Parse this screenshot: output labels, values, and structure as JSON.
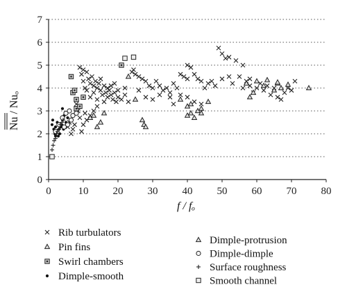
{
  "chart_data": {
    "type": "scatter",
    "title": "",
    "xlabel": "f / fₒ",
    "ylabel": "Nu / Nuₒ",
    "xlim": [
      0,
      80
    ],
    "ylim": [
      0,
      7
    ],
    "x_ticks": [
      "0",
      "10",
      "20",
      "30",
      "40",
      "50",
      "60",
      "70",
      "80"
    ],
    "y_ticks": [
      "0",
      "1",
      "2",
      "3",
      "4",
      "5",
      "6",
      "7"
    ],
    "grid": "horizontal dotted",
    "legend_position": "bottom",
    "series": [
      {
        "name": "Rib turbulators",
        "marker": "cross",
        "points": [
          [
            9,
            4.9
          ],
          [
            9.5,
            4.6
          ],
          [
            10,
            4.8
          ],
          [
            10,
            4.3
          ],
          [
            10.5,
            4.0
          ],
          [
            11,
            4.7
          ],
          [
            11,
            3.9
          ],
          [
            11.5,
            4.4
          ],
          [
            12,
            4.2
          ],
          [
            12,
            3.6
          ],
          [
            12.5,
            4.5
          ],
          [
            13,
            4.1
          ],
          [
            13,
            3.8
          ],
          [
            13.5,
            4.3
          ],
          [
            14,
            4.0
          ],
          [
            14,
            3.5
          ],
          [
            14.5,
            4.2
          ],
          [
            15,
            4.4
          ],
          [
            15,
            3.9
          ],
          [
            15.5,
            3.7
          ],
          [
            16,
            4.1
          ],
          [
            16,
            3.4
          ],
          [
            16.5,
            3.8
          ],
          [
            17,
            4.0
          ],
          [
            17,
            3.6
          ],
          [
            17.5,
            3.9
          ],
          [
            18,
            3.7
          ],
          [
            18.5,
            3.5
          ],
          [
            19,
            3.8
          ],
          [
            19.5,
            3.4
          ],
          [
            20,
            3.6
          ],
          [
            21,
            3.5
          ],
          [
            22,
            3.7
          ],
          [
            23,
            3.4
          ],
          [
            24,
            4.7
          ],
          [
            24.5,
            4.8
          ],
          [
            25,
            4.6
          ],
          [
            26,
            4.5
          ],
          [
            27,
            4.4
          ],
          [
            28,
            4.3
          ],
          [
            29,
            4.1
          ],
          [
            30,
            4.0
          ],
          [
            31,
            4.3
          ],
          [
            32,
            4.1
          ],
          [
            33,
            3.9
          ],
          [
            34,
            4.0
          ],
          [
            35,
            3.8
          ],
          [
            36,
            4.2
          ],
          [
            37,
            4.0
          ],
          [
            38,
            3.7
          ],
          [
            38,
            4.6
          ],
          [
            39,
            4.5
          ],
          [
            40,
            4.4
          ],
          [
            40,
            5.0
          ],
          [
            41,
            4.9
          ],
          [
            42,
            4.6
          ],
          [
            43,
            4.4
          ],
          [
            44,
            4.3
          ],
          [
            45,
            4.0
          ],
          [
            46,
            4.2
          ],
          [
            47,
            4.3
          ],
          [
            48,
            4.1
          ],
          [
            49,
            5.75
          ],
          [
            50,
            5.5
          ],
          [
            50,
            4.4
          ],
          [
            51,
            5.3
          ],
          [
            52,
            4.5
          ],
          [
            52,
            5.35
          ],
          [
            53,
            4.2
          ],
          [
            54,
            5.2
          ],
          [
            55,
            4.5
          ],
          [
            56,
            4.0
          ],
          [
            56,
            5.0
          ],
          [
            57,
            4.3
          ],
          [
            58,
            4.1
          ],
          [
            58,
            4.4
          ],
          [
            59,
            3.8
          ],
          [
            60,
            4.0
          ],
          [
            61,
            4.2
          ],
          [
            62,
            3.9
          ],
          [
            63,
            4.1
          ],
          [
            64,
            3.7
          ],
          [
            65,
            4.0
          ],
          [
            66,
            3.6
          ],
          [
            67,
            3.5
          ],
          [
            68,
            3.8
          ],
          [
            69,
            4.0
          ],
          [
            70,
            3.9
          ],
          [
            71,
            4.3
          ],
          [
            30,
            3.5
          ],
          [
            32,
            3.7
          ],
          [
            35,
            3.6
          ],
          [
            36,
            3.3
          ],
          [
            40,
            3.6
          ],
          [
            42,
            3.4
          ],
          [
            44,
            3.3
          ],
          [
            26,
            3.9
          ],
          [
            28,
            3.6
          ],
          [
            22,
            4.0
          ],
          [
            20,
            3.9
          ],
          [
            19,
            4.2
          ],
          [
            18,
            4.1
          ],
          [
            8,
            3.3
          ],
          [
            8.5,
            3.0
          ],
          [
            9,
            2.7
          ],
          [
            7.5,
            2.4
          ],
          [
            7,
            2.2
          ],
          [
            6.5,
            2.0
          ],
          [
            6,
            2.5
          ],
          [
            5.5,
            2.3
          ],
          [
            10,
            2.4
          ],
          [
            11,
            2.6
          ],
          [
            12,
            2.8
          ],
          [
            13,
            3.0
          ],
          [
            14,
            3.2
          ],
          [
            9.5,
            2.1
          ],
          [
            10.5,
            2.9
          ]
        ]
      },
      {
        "name": "Pin fins",
        "marker": "triangle",
        "points": [
          [
            23,
            4.5
          ],
          [
            25,
            3.5
          ],
          [
            27,
            2.6
          ],
          [
            27.5,
            2.4
          ],
          [
            28,
            2.3
          ],
          [
            38,
            3.5
          ],
          [
            40,
            3.2
          ],
          [
            40,
            2.8
          ],
          [
            41,
            3.3
          ],
          [
            41,
            2.9
          ],
          [
            42,
            2.7
          ],
          [
            43,
            3.0
          ],
          [
            44,
            3.1
          ],
          [
            44,
            2.9
          ],
          [
            46,
            3.4
          ],
          [
            57,
            4.2
          ],
          [
            58,
            3.6
          ],
          [
            59,
            3.8
          ],
          [
            60,
            4.3
          ],
          [
            62,
            4.1
          ],
          [
            65,
            3.9
          ],
          [
            66,
            4.2
          ],
          [
            67,
            4.0
          ],
          [
            12,
            2.7
          ],
          [
            13,
            2.8
          ],
          [
            14,
            2.3
          ],
          [
            15,
            2.5
          ],
          [
            16,
            2.9
          ]
        ]
      },
      {
        "name": "Swirl chambers",
        "marker": "square-dot",
        "points": [
          [
            6.5,
            4.5
          ],
          [
            7,
            3.8
          ],
          [
            7.5,
            3.9
          ],
          [
            8,
            3.5
          ],
          [
            8,
            3.1
          ],
          [
            9,
            3.2
          ],
          [
            10,
            3.6
          ],
          [
            21,
            5.0
          ]
        ]
      },
      {
        "name": "Dimple-smooth",
        "marker": "dot",
        "points": [
          [
            1,
            2.4
          ],
          [
            1.2,
            2.6
          ],
          [
            1.5,
            2.2
          ],
          [
            1.8,
            2.0
          ],
          [
            2,
            2.3
          ],
          [
            2,
            1.9
          ],
          [
            2.3,
            2.1
          ],
          [
            2.5,
            2.5
          ],
          [
            2.8,
            1.9
          ],
          [
            3,
            2.2
          ],
          [
            3.2,
            2.0
          ],
          [
            3.5,
            2.3
          ],
          [
            3.8,
            2.4
          ],
          [
            4,
            2.6
          ],
          [
            4,
            3.1
          ],
          [
            4.3,
            2.2
          ],
          [
            4.5,
            2.8
          ],
          [
            4.8,
            2.9
          ],
          [
            5,
            2.5
          ],
          [
            5.5,
            2.7
          ]
        ]
      },
      {
        "name": "Dimple-protrusion",
        "marker": "triangle",
        "points": [
          [
            75,
            4.0
          ],
          [
            63,
            4.35
          ],
          [
            66,
            4.25
          ],
          [
            69,
            4.15
          ]
        ]
      },
      {
        "name": "Dimple-dimple",
        "marker": "circle",
        "points": [
          [
            2,
            2.1
          ],
          [
            3,
            2.4
          ],
          [
            4,
            2.7
          ],
          [
            5,
            2.9
          ],
          [
            6,
            3.0
          ],
          [
            6.5,
            2.6
          ],
          [
            7,
            2.8
          ],
          [
            5.5,
            2.4
          ],
          [
            8,
            2.9
          ],
          [
            4.5,
            2.3
          ]
        ]
      },
      {
        "name": "Surface roughness",
        "marker": "plus",
        "points": [
          [
            1,
            1.3
          ],
          [
            1.3,
            1.5
          ],
          [
            1.6,
            1.7
          ],
          [
            2,
            1.8
          ],
          [
            2.3,
            2.0
          ],
          [
            2.6,
            2.1
          ],
          [
            3,
            2.2
          ],
          [
            3.4,
            2.4
          ],
          [
            3.8,
            2.5
          ],
          [
            4.2,
            2.6
          ]
        ]
      },
      {
        "name": "Smooth channel",
        "marker": "square",
        "points": [
          [
            1,
            1.0
          ],
          [
            22,
            5.3
          ],
          [
            24.5,
            5.35
          ]
        ]
      }
    ]
  }
}
